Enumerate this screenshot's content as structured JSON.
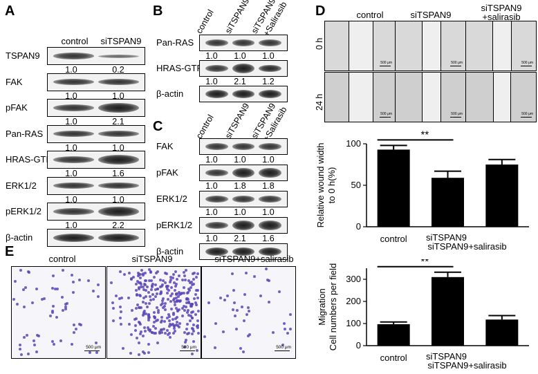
{
  "panels": {
    "A": {
      "letter": "A",
      "columns": [
        "control",
        "siTSPAN9"
      ],
      "rows": [
        {
          "label": "TSPAN9",
          "values": [
            "1.0",
            "0.2"
          ]
        },
        {
          "label": "FAK",
          "values": [
            "1.0",
            "1.0"
          ]
        },
        {
          "label": "pFAK",
          "values": [
            "1.0",
            "2.1"
          ]
        },
        {
          "label": "Pan-RAS",
          "values": [
            "1.0",
            "1.0"
          ]
        },
        {
          "label": "HRAS-GTP",
          "values": [
            "1.0",
            "1.6"
          ]
        },
        {
          "label": "ERK1/2",
          "values": [
            "1.0",
            "1.0"
          ]
        },
        {
          "label": "pERK1/2",
          "values": [
            "1.0",
            "2.2"
          ]
        },
        {
          "label": "β-actin",
          "values": []
        }
      ]
    },
    "B": {
      "letter": "B",
      "columns": [
        "control",
        "siTSPAN9",
        "siTSPAN9\n+Salirasib"
      ],
      "col_line1": [
        "control",
        "siTSPAN9",
        "siTSPAN9"
      ],
      "col_line2": [
        "",
        "",
        "+Salirasib"
      ],
      "rows": [
        {
          "label": "Pan-RAS",
          "values": [
            "1.0",
            "1.0",
            "1.0"
          ]
        },
        {
          "label": "HRAS-GTP",
          "values": [
            "1.0",
            "2.1",
            "1.2"
          ]
        },
        {
          "label": "β-actin",
          "values": []
        }
      ]
    },
    "C": {
      "letter": "C",
      "col_line1": [
        "control",
        "siTSPAN9",
        "siTSPAN9"
      ],
      "col_line2": [
        "",
        "",
        "+Salirasib"
      ],
      "rows": [
        {
          "label": "FAK",
          "values": [
            "1.0",
            "1.0",
            "1.0"
          ]
        },
        {
          "label": "pFAK",
          "values": [
            "1.0",
            "1.8",
            "1.8"
          ]
        },
        {
          "label": "ERK1/2",
          "values": [
            "1.0",
            "1.0",
            "1.0"
          ]
        },
        {
          "label": "pERK1/2",
          "values": [
            "1.0",
            "2.1",
            "1.6"
          ]
        },
        {
          "label": "β-actin",
          "values": []
        }
      ]
    },
    "D": {
      "letter": "D",
      "columns": [
        "control",
        "siTSPAN9",
        "siTSPAN9\n+salirasib"
      ],
      "col_line1": [
        "control",
        "siTSPAN9",
        "siTSPAN9"
      ],
      "col_line2": [
        "",
        "",
        "+salirasib"
      ],
      "rows": [
        "0 h",
        "24 h"
      ],
      "scale_bar": "500 μm"
    },
    "E": {
      "letter": "E",
      "columns": [
        "control",
        "siTSPAN9",
        "siTSPAN9+salirasib"
      ],
      "scale_bar": "500 μm"
    }
  },
  "chart_data": [
    {
      "type": "bar",
      "categories": [
        "control",
        "siTSPAN9",
        "siTSPAN9+salirasib"
      ],
      "values": [
        93,
        59,
        75
      ],
      "errors": [
        5,
        8,
        6
      ],
      "ylabel": "Relative wound width\nto 0 h(%)",
      "ylabel_line1": "Relative wound width",
      "ylabel_line2": "to 0 h(%)",
      "ylim": [
        0,
        100
      ],
      "yticks": [
        "0",
        "50",
        "100"
      ],
      "significance": "**",
      "bar_color": "#000000"
    },
    {
      "type": "bar",
      "categories": [
        "control",
        "siTSPAN9",
        "siTSPAN9+salirasib"
      ],
      "values": [
        97,
        310,
        118
      ],
      "errors": [
        10,
        22,
        18
      ],
      "ylabel": "Migration\nCell numbers per field",
      "ylabel_line1": "Migration",
      "ylabel_line2": "Cell numbers per field",
      "ylim": [
        0,
        350
      ],
      "yticks": [
        "0",
        "100",
        "200",
        "300"
      ],
      "significance": "**",
      "bar_color": "#000000"
    }
  ]
}
